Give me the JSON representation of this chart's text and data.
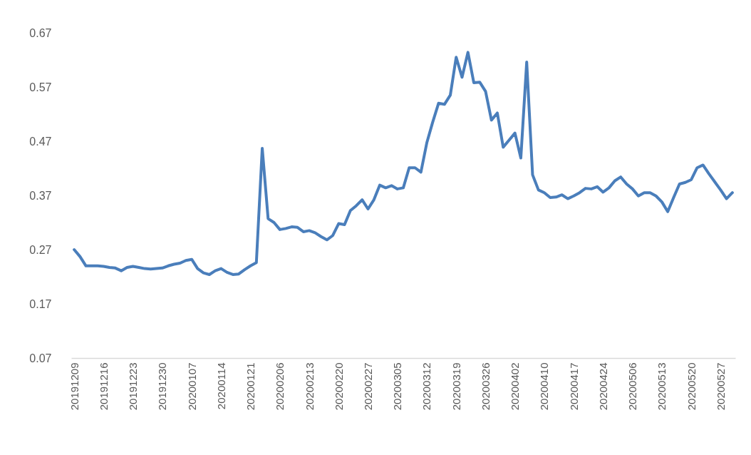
{
  "chart_data": {
    "type": "line",
    "categories": [
      "20191209",
      null,
      null,
      null,
      null,
      "20191216",
      null,
      null,
      null,
      null,
      "20191223",
      null,
      null,
      null,
      null,
      "20191230",
      null,
      null,
      null,
      null,
      "20200107",
      null,
      null,
      null,
      null,
      "20200114",
      null,
      null,
      null,
      null,
      "20200121",
      null,
      null,
      null,
      null,
      "20200206",
      null,
      null,
      null,
      null,
      "20200213",
      null,
      null,
      null,
      null,
      "20200220",
      null,
      null,
      null,
      null,
      "20200227",
      null,
      null,
      null,
      null,
      "20200305",
      null,
      null,
      null,
      null,
      "20200312",
      null,
      null,
      null,
      null,
      "20200319",
      null,
      null,
      null,
      null,
      "20200326",
      null,
      null,
      null,
      null,
      "20200402",
      null,
      null,
      null,
      null,
      "20200410",
      null,
      null,
      null,
      null,
      "20200417",
      null,
      null,
      null,
      null,
      "20200424",
      null,
      null,
      null,
      null,
      "20200506",
      null,
      null,
      null,
      null,
      "20200513",
      null,
      null,
      null,
      null,
      "20200520",
      null,
      null,
      null,
      null,
      "20200527",
      null,
      null
    ],
    "series": [
      {
        "color": "#4a7ebb",
        "values": [
          0.27,
          0.257,
          0.24,
          0.24,
          0.24,
          0.239,
          0.237,
          0.236,
          0.231,
          0.237,
          0.239,
          0.237,
          0.235,
          0.234,
          0.235,
          0.236,
          0.24,
          0.243,
          0.245,
          0.25,
          0.252,
          0.235,
          0.227,
          0.224,
          0.231,
          0.235,
          0.228,
          0.224,
          0.225,
          0.233,
          0.24,
          0.246,
          0.457,
          0.327,
          0.32,
          0.307,
          0.309,
          0.312,
          0.311,
          0.303,
          0.305,
          0.301,
          0.294,
          0.288,
          0.296,
          0.318,
          0.316,
          0.342,
          0.351,
          0.362,
          0.345,
          0.362,
          0.389,
          0.384,
          0.388,
          0.382,
          0.384,
          0.421,
          0.421,
          0.413,
          0.467,
          0.505,
          0.54,
          0.538,
          0.555,
          0.625,
          0.588,
          0.634,
          0.578,
          0.579,
          0.562,
          0.509,
          0.522,
          0.459,
          0.472,
          0.485,
          0.439,
          0.616,
          0.408,
          0.38,
          0.375,
          0.366,
          0.367,
          0.371,
          0.364,
          0.369,
          0.375,
          0.383,
          0.382,
          0.386,
          0.376,
          0.384,
          0.397,
          0.404,
          0.391,
          0.382,
          0.369,
          0.375,
          0.375,
          0.369,
          0.358,
          0.34,
          0.366,
          0.391,
          0.394,
          0.399,
          0.421,
          0.426,
          0.41,
          0.395,
          0.38,
          0.364,
          0.375
        ]
      }
    ],
    "ylim": [
      0.07,
      0.67
    ],
    "yticks": [
      0.07,
      0.17,
      0.27,
      0.37,
      0.47,
      0.57,
      0.67
    ],
    "grid": false,
    "legend": false,
    "line_style": "solid",
    "marker": "none"
  }
}
